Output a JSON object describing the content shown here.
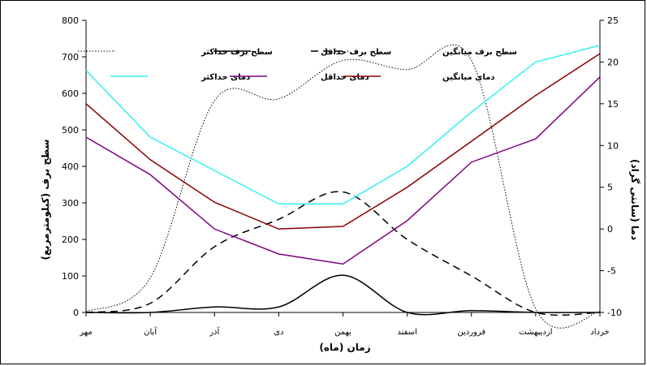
{
  "chart_data": {
    "type": "line",
    "categories": [
      "مهر",
      "آبان",
      "آذر",
      "دی",
      "بهمن",
      "اسفند",
      "فروردین",
      "اردیبهشت",
      "خرداد"
    ],
    "xlabel": "زمان (ماه)",
    "ylabel_left": "سطح برف (کیلومترمربع)",
    "ylabel_right": "دما (سانتی گراد)",
    "ylim_left": [
      0,
      800
    ],
    "ylim_right": [
      -10,
      25
    ],
    "yticks_left": [
      "0",
      "100",
      "200",
      "300",
      "400",
      "500",
      "600",
      "700",
      "800"
    ],
    "yticks_right": [
      "-10",
      "-5",
      "0",
      "5",
      "10",
      "15",
      "20",
      "25"
    ],
    "grid": false,
    "legend_position": "top",
    "series": [
      {
        "name": "سطح برف حداکثر",
        "axis": "left",
        "color": "#000000",
        "style": "dotted",
        "smooth": true,
        "values": [
          2,
          95,
          580,
          585,
          690,
          665,
          690,
          10,
          2
        ]
      },
      {
        "name": "سطح برف حداقل",
        "axis": "left",
        "color": "#000000",
        "style": "solid",
        "smooth": true,
        "values": [
          0,
          0,
          15,
          15,
          102,
          0,
          5,
          0,
          0
        ]
      },
      {
        "name": "سطح برف میانگین",
        "axis": "left",
        "color": "#000000",
        "style": "dashed",
        "smooth": true,
        "values": [
          0,
          25,
          180,
          255,
          330,
          200,
          100,
          0,
          0
        ]
      },
      {
        "name": "دمای حداکثر",
        "axis": "right",
        "color": "#33F0F0",
        "style": "solid",
        "smooth": false,
        "values": [
          19,
          11,
          7,
          3,
          3,
          7.5,
          14,
          20,
          22
        ]
      },
      {
        "name": "دمای حداقل",
        "axis": "right",
        "color": "#800080",
        "style": "solid",
        "smooth": false,
        "values": [
          11,
          6.5,
          0,
          -3,
          -4.2,
          1,
          8,
          10.8,
          18.2
        ]
      },
      {
        "name": "دمای میانگین",
        "axis": "right",
        "color": "#8B0000",
        "style": "solid",
        "smooth": false,
        "values": [
          15,
          8.3,
          3.2,
          0,
          0.3,
          5,
          10.5,
          16,
          21
        ]
      }
    ]
  }
}
